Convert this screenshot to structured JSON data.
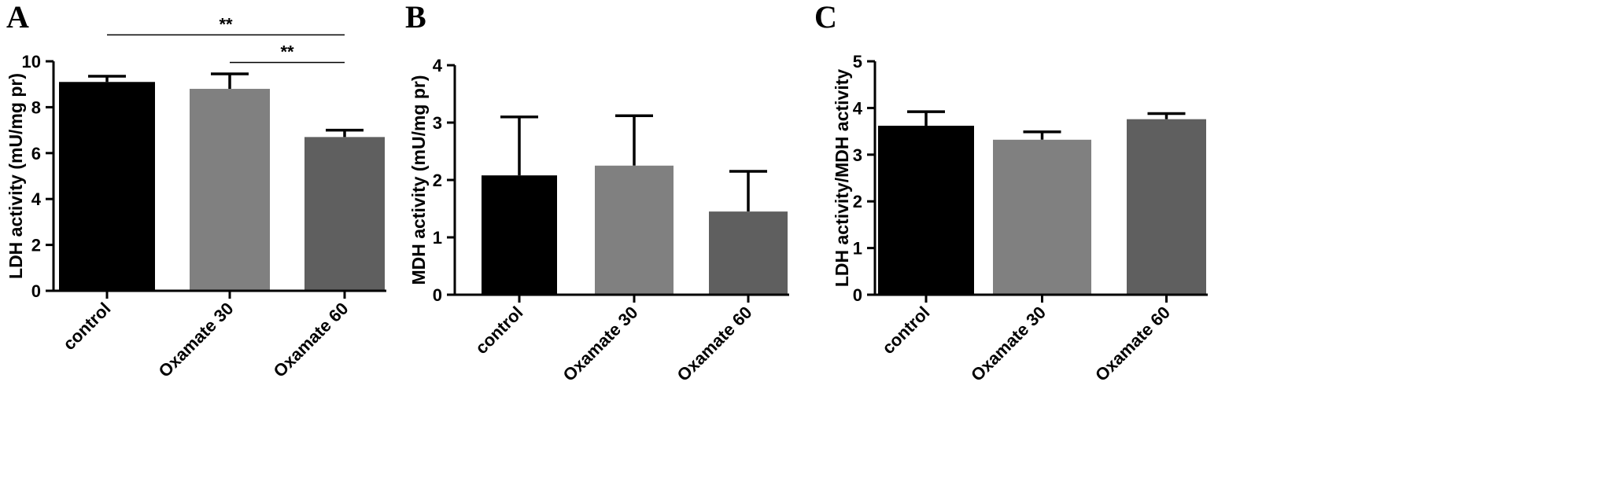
{
  "chart_data": [
    {
      "type": "bar",
      "panel": "A",
      "title": "",
      "xlabel": "",
      "ylabel": "LDH activity (mU/mg pr)",
      "ylim": [
        0,
        10
      ],
      "yticks": [
        0,
        2,
        4,
        6,
        8,
        10
      ],
      "categories": [
        "control",
        "Oxamate 30",
        "Oxamate 60"
      ],
      "values": [
        9.1,
        8.8,
        6.7
      ],
      "errors": [
        0.25,
        0.65,
        0.3
      ],
      "colors": [
        "#000000",
        "#808080",
        "#5f5f5f"
      ],
      "significance": [
        {
          "from": 0,
          "to": 2,
          "label": "**",
          "y": 11.15
        },
        {
          "from": 1,
          "to": 2,
          "label": "**",
          "y": 9.95
        }
      ],
      "grid": false,
      "legend": "none"
    },
    {
      "type": "bar",
      "panel": "B",
      "title": "",
      "xlabel": "",
      "ylabel": "MDH activity (mU/mg pr)",
      "ylim": [
        0,
        4
      ],
      "yticks": [
        0,
        1,
        2,
        3,
        4
      ],
      "categories": [
        "control",
        "Oxamate 30",
        "Oxamate 60"
      ],
      "values": [
        2.08,
        2.25,
        1.45
      ],
      "errors": [
        1.02,
        0.87,
        0.7
      ],
      "colors": [
        "#000000",
        "#808080",
        "#5f5f5f"
      ],
      "significance": [],
      "grid": false,
      "legend": "none"
    },
    {
      "type": "bar",
      "panel": "C",
      "title": "",
      "xlabel": "",
      "ylabel": "LDH activity/MDH activity",
      "ylim": [
        0,
        5
      ],
      "yticks": [
        0,
        1,
        2,
        3,
        4,
        5
      ],
      "categories": [
        "control",
        "Oxamate 30",
        "Oxamate 60"
      ],
      "values": [
        3.62,
        3.32,
        3.76
      ],
      "errors": [
        0.3,
        0.17,
        0.12
      ],
      "colors": [
        "#000000",
        "#808080",
        "#5f5f5f"
      ],
      "significance": [],
      "grid": false,
      "legend": "none"
    }
  ]
}
